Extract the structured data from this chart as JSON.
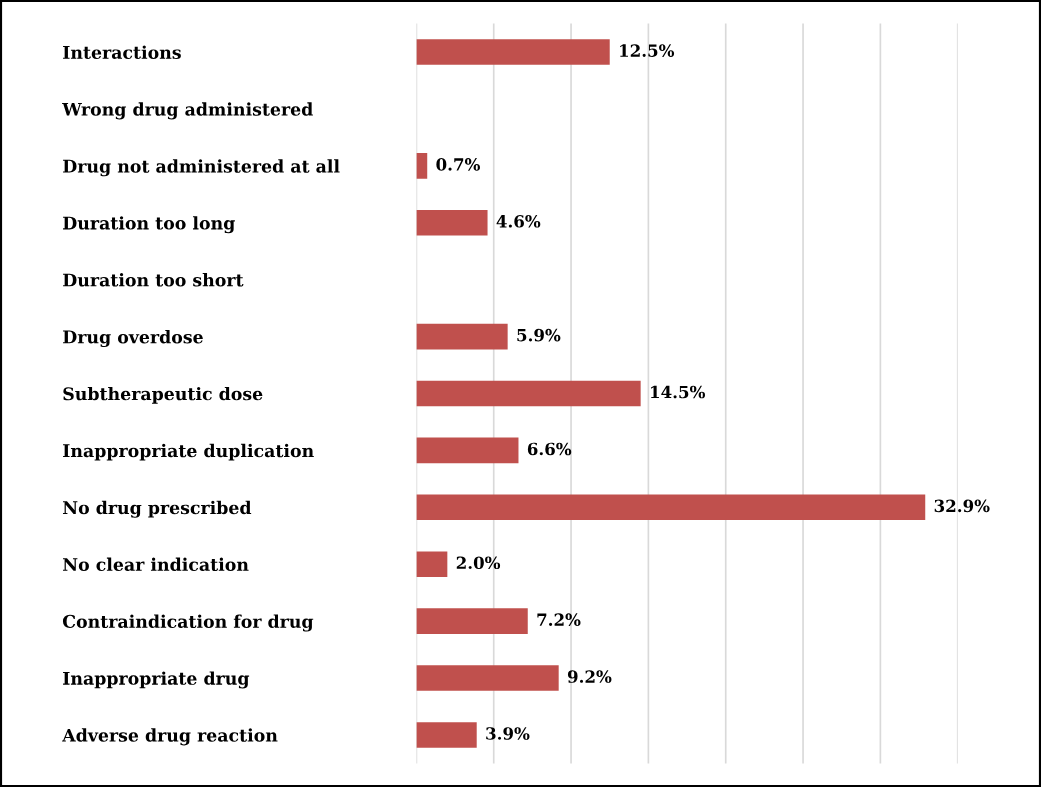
{
  "chart_data": {
    "type": "bar",
    "orientation": "horizontal",
    "categories": [
      "Interactions",
      "Wrong drug administered",
      "Drug not administered at all",
      "Duration too long",
      "Duration too short",
      "Drug overdose",
      "Subtherapeutic dose",
      "Inappropriate duplication",
      "No drug prescribed",
      "No clear indication",
      "Contraindication for drug",
      "Inappropriate drug",
      "Adverse drug reaction"
    ],
    "values": [
      12.5,
      null,
      0.7,
      4.6,
      null,
      5.9,
      14.5,
      6.6,
      32.9,
      2.0,
      7.2,
      9.2,
      3.9
    ],
    "value_labels": [
      "12.5%",
      null,
      "0.7%",
      "4.6%",
      null,
      "5.9%",
      "14.5%",
      "6.6%",
      "32.9%",
      "2.0%",
      "7.2%",
      "9.2%",
      "3.9%"
    ],
    "color": "#c0504d",
    "xlim": [
      0,
      35
    ],
    "xticks": [
      {
        "value": 0,
        "label": null
      },
      {
        "value": 5,
        "label": null
      },
      {
        "value": 10,
        "label": null
      },
      {
        "value": 15,
        "label": null
      },
      {
        "value": 20,
        "label": null
      },
      {
        "value": 25,
        "label": null
      },
      {
        "value": 30,
        "label": null
      },
      {
        "value": 35,
        "label": null
      }
    ],
    "grid": "x",
    "tick_labels": "y"
  }
}
